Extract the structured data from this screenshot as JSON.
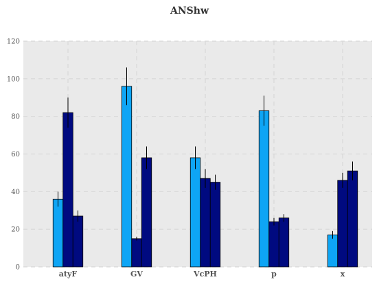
{
  "chart_data": {
    "type": "bar",
    "title": "ANShw",
    "xlabel": "",
    "ylabel": "",
    "categories": [
      "atyF",
      "GV",
      "VcPH",
      "p",
      "x"
    ],
    "series": [
      {
        "values": [
          36,
          96,
          58,
          83,
          17
        ],
        "errors": [
          4,
          10,
          6,
          8,
          2
        ],
        "color": "#0ea5f5"
      },
      {
        "values": [
          82,
          15,
          47,
          24,
          46
        ],
        "errors": [
          8,
          1,
          5,
          2,
          4
        ],
        "color": "#000a80"
      },
      {
        "values": [
          27,
          58,
          45,
          26,
          51
        ],
        "errors": [
          3,
          6,
          4,
          2,
          5
        ],
        "color": "#000a80"
      }
    ],
    "ylim": [
      0,
      120
    ],
    "yticks": [
      0,
      20,
      40,
      60,
      80,
      100,
      120
    ],
    "grid": true,
    "background": "#eaeaea",
    "grid_color": "#d8d8d8"
  }
}
